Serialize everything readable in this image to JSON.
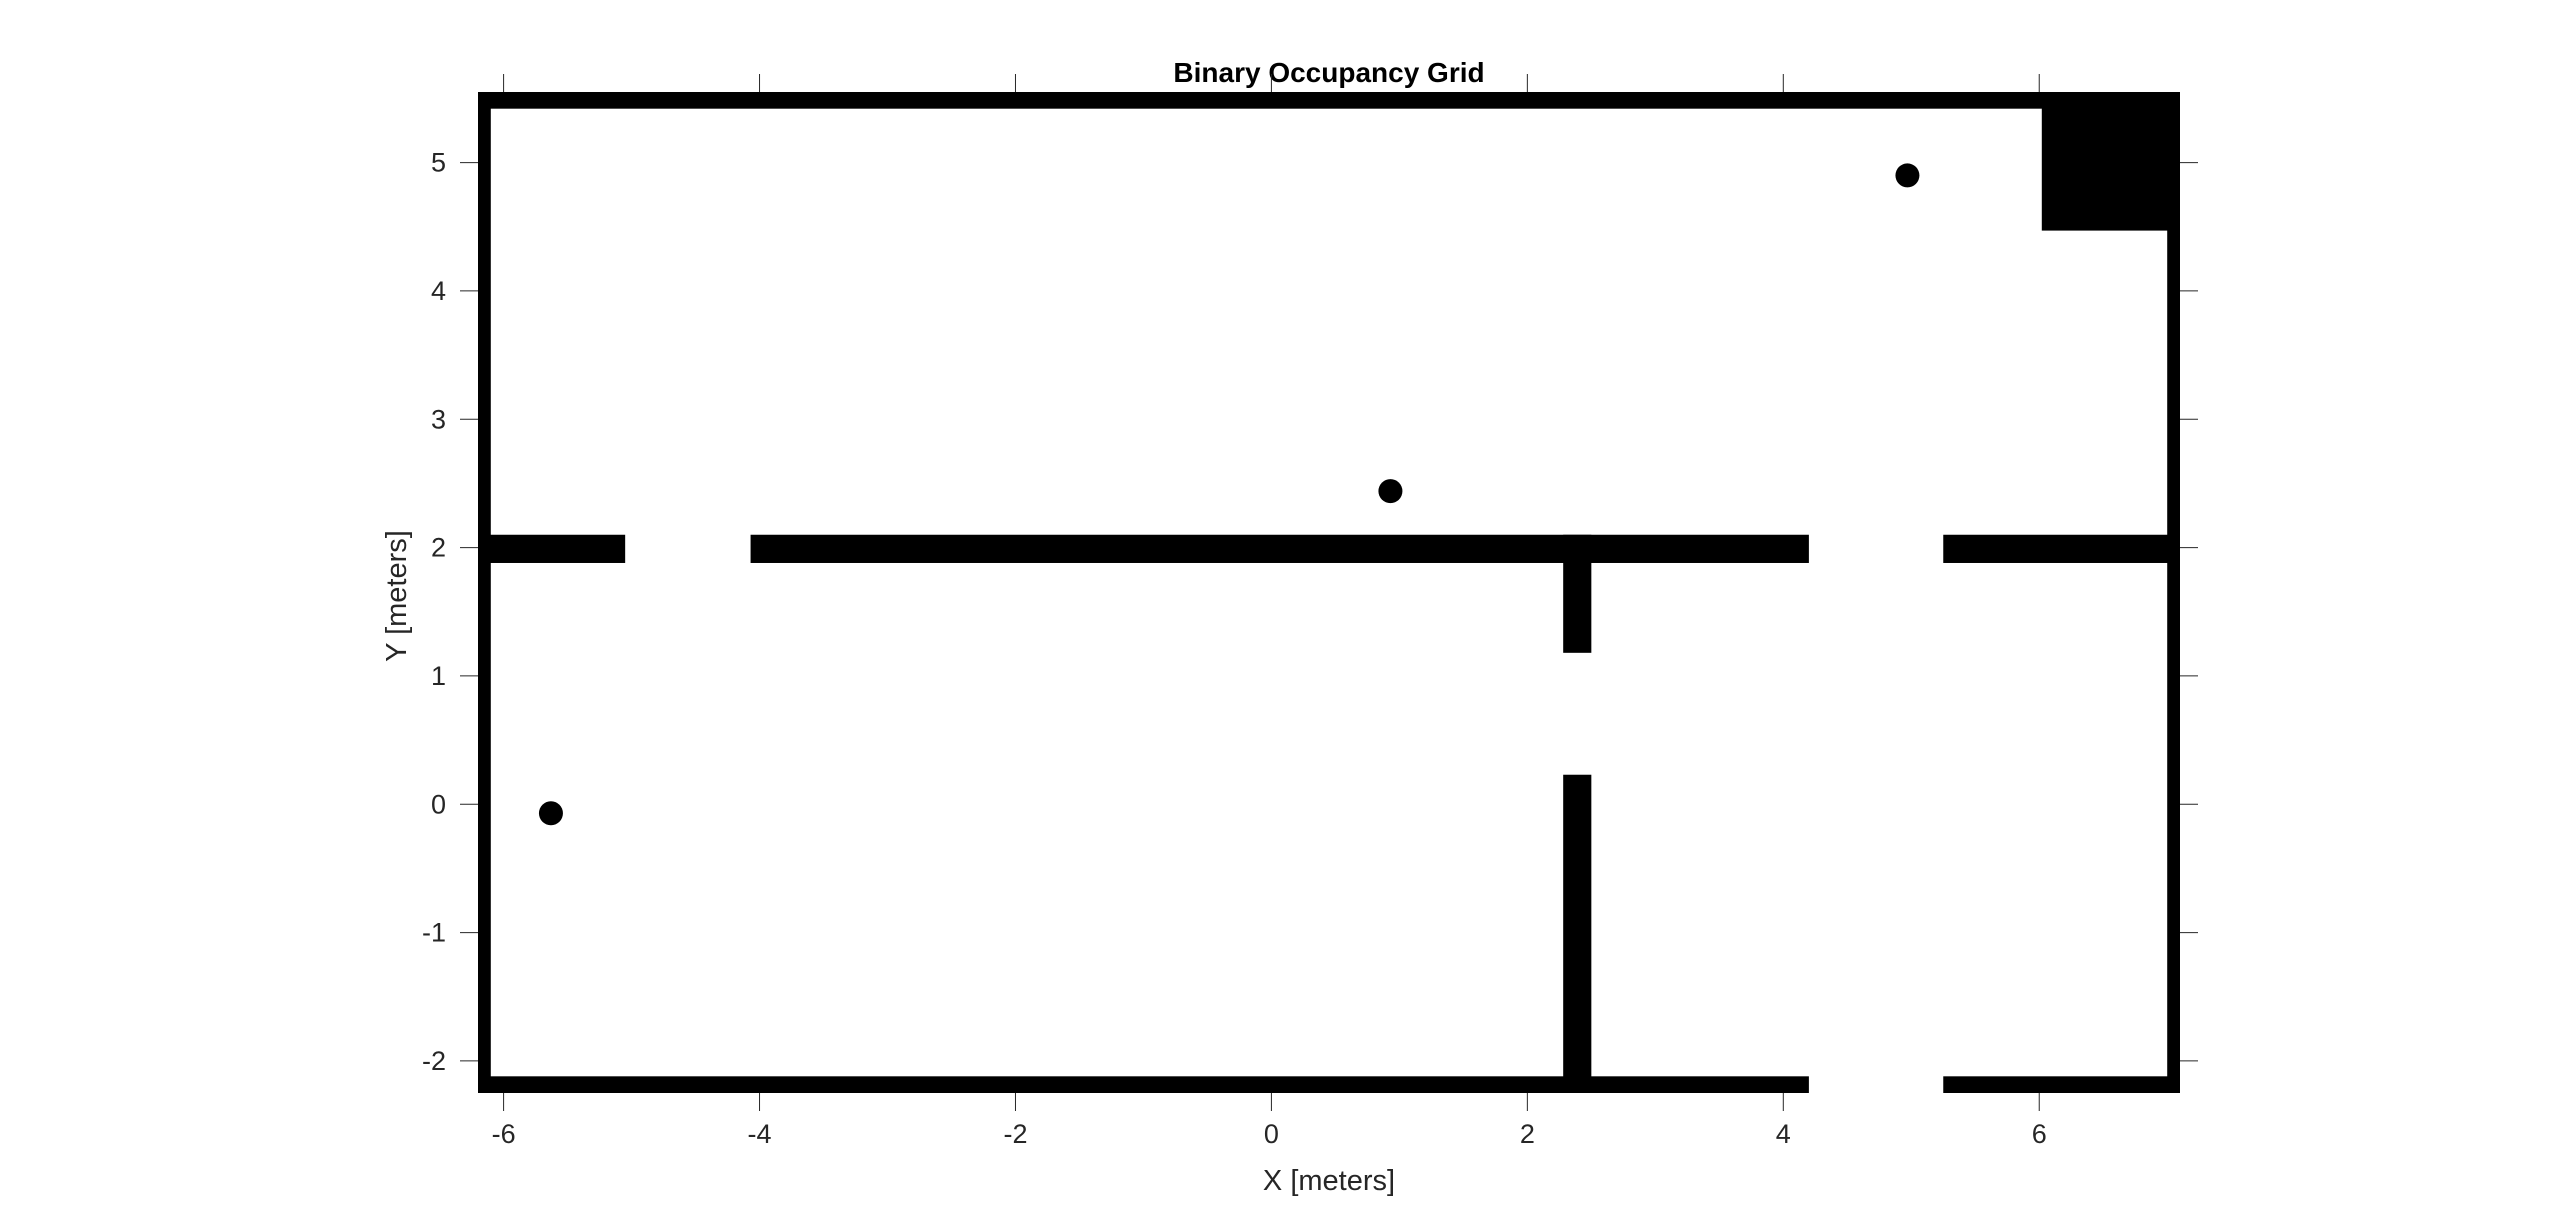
{
  "chart_data": {
    "type": "heatmap",
    "title": "Binary Occupancy Grid",
    "xlabel": "X [meters]",
    "ylabel": "Y [meters]",
    "xlim": [
      -6.2,
      7.1
    ],
    "ylim": [
      -2.25,
      5.55
    ],
    "xticks": [
      -6,
      -4,
      -2,
      0,
      2,
      4,
      6
    ],
    "xtick_labels": [
      "-6",
      "-4",
      "-2",
      "0",
      "2",
      "4",
      "6"
    ],
    "yticks": [
      -2,
      -1,
      0,
      1,
      2,
      3,
      4,
      5
    ],
    "ytick_labels": [
      "-2",
      "-1",
      "0",
      "1",
      "2",
      "3",
      "4",
      "5"
    ],
    "grid": false,
    "colors": {
      "occupied": "#000000",
      "free": "#ffffff",
      "axis": "#262626"
    },
    "occupied_cells": [
      {
        "name": "outer-wall-top",
        "x0": -6.2,
        "x1": 7.1,
        "y0": 5.42,
        "y1": 5.55
      },
      {
        "name": "outer-wall-bottom-left",
        "x0": -6.2,
        "x1": 4.2,
        "y0": -2.25,
        "y1": -2.12
      },
      {
        "name": "outer-wall-bottom-right",
        "x0": 5.25,
        "x1": 7.1,
        "y0": -2.25,
        "y1": -2.12
      },
      {
        "name": "outer-wall-left",
        "x0": -6.2,
        "x1": -6.1,
        "y0": -2.25,
        "y1": 5.55
      },
      {
        "name": "outer-wall-right",
        "x0": 7.0,
        "x1": 7.1,
        "y0": -2.25,
        "y1": 5.55
      },
      {
        "name": "inner-wall-left-stub",
        "x0": -6.2,
        "x1": -5.05,
        "y0": 1.88,
        "y1": 2.1
      },
      {
        "name": "inner-wall-center",
        "x0": -4.07,
        "x1": 4.2,
        "y0": 1.88,
        "y1": 2.1
      },
      {
        "name": "inner-wall-right-stub",
        "x0": 5.25,
        "x1": 7.1,
        "y0": 1.88,
        "y1": 2.1
      },
      {
        "name": "partition-upper",
        "x0": 2.28,
        "x1": 2.5,
        "y0": 1.18,
        "y1": 2.1
      },
      {
        "name": "partition-lower",
        "x0": 2.28,
        "x1": 2.5,
        "y0": -2.25,
        "y1": 0.23
      },
      {
        "name": "corner-block",
        "x0": 6.02,
        "x1": 7.1,
        "y0": 4.47,
        "y1": 5.55
      }
    ],
    "points": [
      {
        "x": -5.63,
        "y": -0.07
      },
      {
        "x": 0.93,
        "y": 2.44
      },
      {
        "x": 4.97,
        "y": 4.9
      }
    ]
  }
}
